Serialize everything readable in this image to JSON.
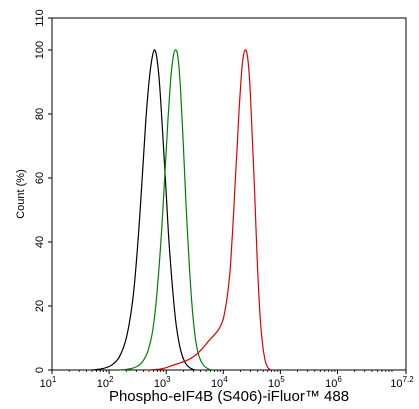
{
  "chart_data": {
    "type": "line",
    "title": "",
    "xlabel": "Phospho-eIF4B (S406)-iFluor™ 488",
    "ylabel": "Count  (%)",
    "x_scale": "log",
    "xlim": [
      10,
      15848932
    ],
    "ylim": [
      0,
      110
    ],
    "x_ticks": [
      {
        "value": 10,
        "base": "10",
        "exp": "1"
      },
      {
        "value": 100,
        "base": "10",
        "exp": "2"
      },
      {
        "value": 1000,
        "base": "10",
        "exp": "3"
      },
      {
        "value": 10000,
        "base": "10",
        "exp": "4"
      },
      {
        "value": 100000,
        "base": "10",
        "exp": "5"
      },
      {
        "value": 1000000,
        "base": "10",
        "exp": "6"
      },
      {
        "value": 15848932,
        "base": "10",
        "exp": "7.2"
      }
    ],
    "y_ticks": [
      {
        "value": 0,
        "label": "0"
      },
      {
        "value": 20,
        "label": "20"
      },
      {
        "value": 40,
        "label": "40"
      },
      {
        "value": 60,
        "label": "60"
      },
      {
        "value": 80,
        "label": "80"
      },
      {
        "value": 100,
        "label": "100"
      },
      {
        "value": 110,
        "label": "110"
      }
    ],
    "grid": false,
    "series": [
      {
        "color": "#000000",
        "points": [
          [
            50,
            0
          ],
          [
            80,
            0.5
          ],
          [
            110,
            1.5
          ],
          [
            150,
            4
          ],
          [
            200,
            10
          ],
          [
            260,
            22
          ],
          [
            320,
            40
          ],
          [
            380,
            60
          ],
          [
            440,
            78
          ],
          [
            500,
            90
          ],
          [
            560,
            97
          ],
          [
            620,
            100
          ],
          [
            680,
            98
          ],
          [
            760,
            90
          ],
          [
            860,
            75
          ],
          [
            980,
            58
          ],
          [
            1120,
            40
          ],
          [
            1300,
            25
          ],
          [
            1500,
            14
          ],
          [
            1800,
            6
          ],
          [
            2200,
            2
          ],
          [
            2700,
            0.5
          ],
          [
            3200,
            0
          ]
        ]
      },
      {
        "color": "#008000",
        "points": [
          [
            150,
            0
          ],
          [
            250,
            0.5
          ],
          [
            360,
            2
          ],
          [
            480,
            6
          ],
          [
            600,
            14
          ],
          [
            720,
            28
          ],
          [
            840,
            45
          ],
          [
            960,
            63
          ],
          [
            1080,
            79
          ],
          [
            1200,
            91
          ],
          [
            1330,
            98
          ],
          [
            1450,
            100
          ],
          [
            1600,
            98
          ],
          [
            1780,
            88
          ],
          [
            2000,
            70
          ],
          [
            2250,
            50
          ],
          [
            2550,
            32
          ],
          [
            2900,
            18
          ],
          [
            3300,
            9
          ],
          [
            3800,
            4
          ],
          [
            4500,
            1.5
          ],
          [
            5500,
            0.3
          ],
          [
            6500,
            0
          ]
        ]
      },
      {
        "color": "#e00000",
        "points": [
          [
            450,
            0
          ],
          [
            800,
            0.3
          ],
          [
            1100,
            1
          ],
          [
            1600,
            2
          ],
          [
            2300,
            3
          ],
          [
            3200,
            4.5
          ],
          [
            4200,
            6.5
          ],
          [
            5500,
            9
          ],
          [
            7000,
            11
          ],
          [
            8500,
            13
          ],
          [
            10000,
            16
          ],
          [
            11500,
            22
          ],
          [
            13000,
            30
          ],
          [
            14500,
            43
          ],
          [
            16000,
            57
          ],
          [
            17500,
            70
          ],
          [
            19000,
            82
          ],
          [
            20500,
            91
          ],
          [
            22000,
            97
          ],
          [
            24000,
            100
          ],
          [
            26500,
            98
          ],
          [
            29000,
            90
          ],
          [
            32000,
            74
          ],
          [
            35500,
            55
          ],
          [
            39000,
            36
          ],
          [
            43000,
            20
          ],
          [
            48000,
            9
          ],
          [
            54000,
            3
          ],
          [
            60000,
            0.8
          ],
          [
            68000,
            0
          ]
        ]
      }
    ]
  }
}
